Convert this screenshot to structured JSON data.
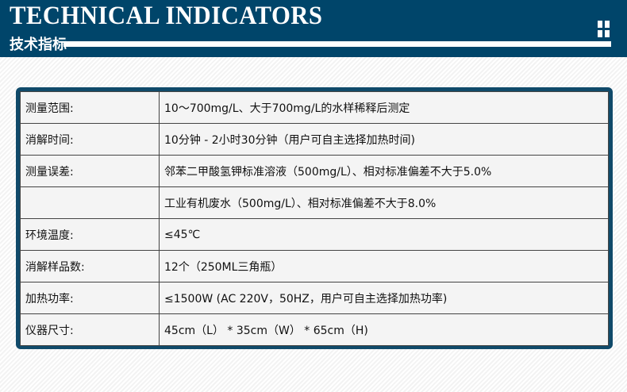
{
  "header": {
    "title_en": "TECHNICAL INDICATORS",
    "title_cn": "技术指标",
    "accent": "#00456a"
  },
  "rows": [
    {
      "label": "测量范围:",
      "value": "10～700mg/L、大于700mg/L的水样稀释后测定"
    },
    {
      "label": "消解时间:",
      "value": "10分钟 - 2小时30分钟（用户可自主选择加热时间)"
    },
    {
      "label": "测量误差:",
      "value": "邻苯二甲酸氢钾标准溶液（500mg/L）、相对标准偏差不大于5.0%"
    },
    {
      "label": "",
      "value": "工业有机废水（500mg/L）、相对标准偏差不大于8.0%"
    },
    {
      "label": "环境温度:",
      "value": "≤45℃"
    },
    {
      "label": "消解样品数:",
      "value": "12个（250ML三角瓶）"
    },
    {
      "label": "加热功率:",
      "value": "≤1500W (AC 220V，50HZ，用户可自主选择加热功率)"
    },
    {
      "label": "仪器尺寸:",
      "value": "45cm（L） * 35cm（W） * 65cm（H)"
    }
  ]
}
